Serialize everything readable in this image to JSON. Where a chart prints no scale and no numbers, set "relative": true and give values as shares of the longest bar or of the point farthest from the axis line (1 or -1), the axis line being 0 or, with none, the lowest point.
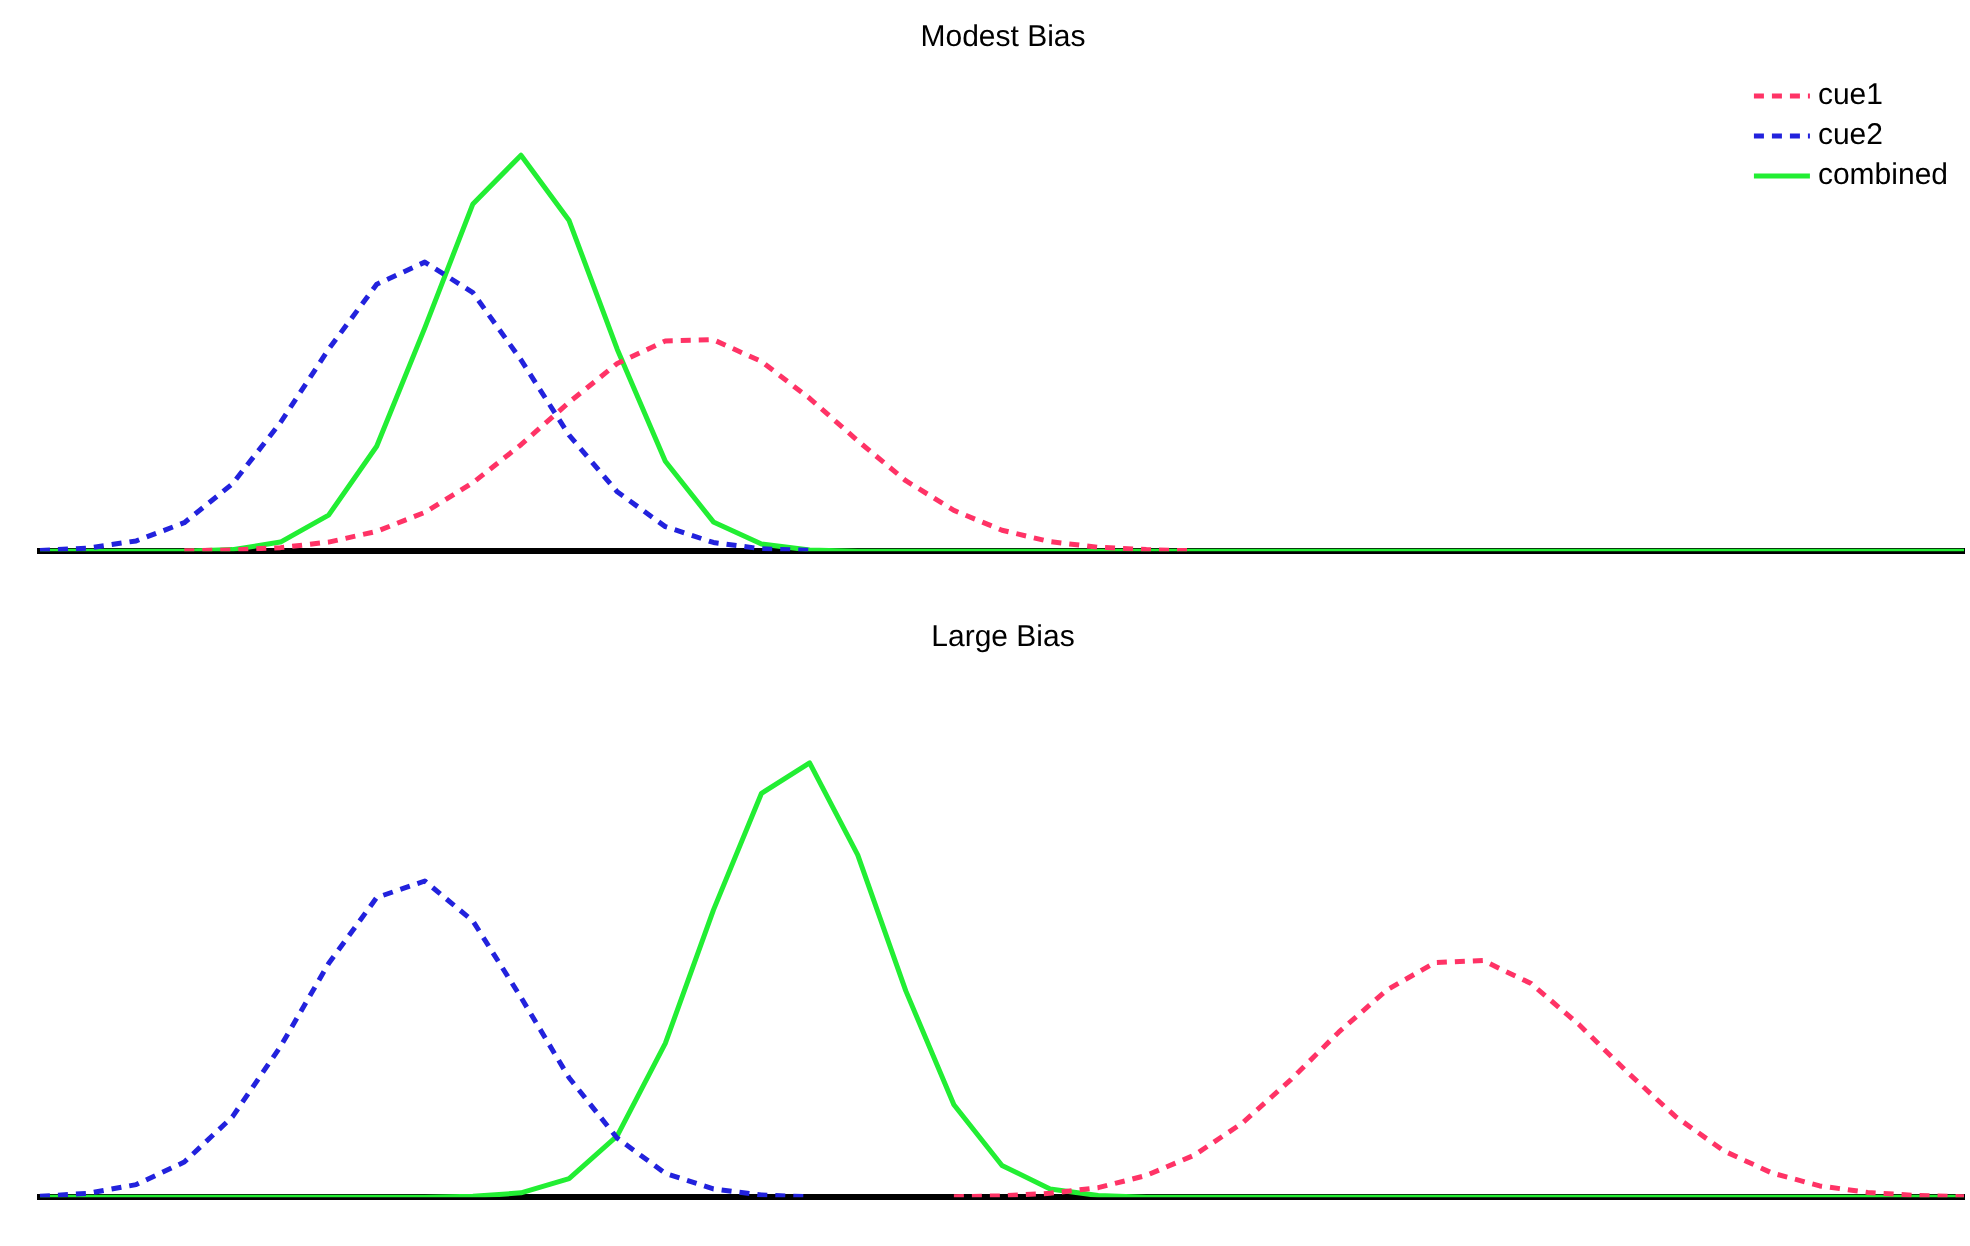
{
  "chart_data": [
    {
      "type": "line",
      "title": "Modest Bias",
      "relative": true,
      "legend": "top right",
      "marker": "none",
      "categories": [
        null,
        null,
        null,
        null,
        null,
        null,
        null,
        null,
        null,
        null,
        null,
        null,
        null,
        null,
        null,
        null,
        null,
        null,
        null,
        null,
        null,
        null,
        null,
        null,
        null,
        null,
        null,
        null,
        null,
        null,
        null,
        null,
        null,
        null,
        null,
        null,
        null,
        null,
        null,
        null,
        null
      ],
      "series": [
        {
          "name": "cue1",
          "color": "#ff3366",
          "line_style": "dashed",
          "values": [
            null,
            null,
            null,
            0.001,
            0.003,
            0.009,
            0.023,
            0.05,
            0.098,
            0.173,
            0.269,
            0.376,
            0.474,
            0.531,
            0.534,
            0.479,
            0.386,
            0.279,
            0.178,
            0.103,
            0.053,
            0.024,
            0.01,
            0.004,
            0.001,
            null,
            null,
            null,
            null,
            null,
            null,
            null,
            null,
            null,
            null,
            null,
            null,
            null,
            null,
            null,
            null
          ]
        },
        {
          "name": "cue2",
          "color": "#2222dd",
          "line_style": "dashed",
          "values": [
            0.002,
            0.008,
            0.026,
            0.072,
            0.17,
            0.325,
            0.51,
            0.674,
            0.73,
            0.653,
            0.483,
            0.293,
            0.15,
            0.062,
            0.022,
            0.006,
            0.002,
            null,
            null,
            null,
            null,
            null,
            null,
            null,
            null,
            null,
            null,
            null,
            null,
            null,
            null,
            null,
            null,
            null,
            null,
            null,
            null,
            null,
            null,
            null,
            null
          ]
        },
        {
          "name": "combined",
          "color": "#22ee33",
          "line_style": "solid",
          "values": [
            0,
            0,
            0,
            0,
            0.004,
            0.023,
            0.091,
            0.265,
            0.564,
            0.877,
            1,
            0.835,
            0.51,
            0.227,
            0.074,
            0.018,
            0.003,
            0,
            0,
            0,
            0,
            0,
            0,
            0,
            0,
            0,
            0,
            0,
            0,
            0,
            0,
            0,
            0,
            0,
            0,
            0,
            0,
            0,
            0,
            0,
            0
          ]
        }
      ]
    },
    {
      "type": "line",
      "title": "Large Bias",
      "relative": true,
      "legend": false,
      "marker": "none",
      "categories": [
        null,
        null,
        null,
        null,
        null,
        null,
        null,
        null,
        null,
        null,
        null,
        null,
        null,
        null,
        null,
        null,
        null,
        null,
        null,
        null,
        null,
        null,
        null,
        null,
        null,
        null,
        null,
        null,
        null,
        null,
        null,
        null,
        null,
        null,
        null,
        null,
        null,
        null,
        null,
        null,
        null
      ],
      "series": [
        {
          "color": "#ff3366",
          "line_style": "dashed",
          "values": [
            null,
            null,
            null,
            null,
            null,
            null,
            null,
            null,
            null,
            null,
            null,
            null,
            null,
            null,
            null,
            null,
            null,
            null,
            null,
            0.001,
            0.003,
            0.009,
            0.022,
            0.05,
            0.097,
            0.171,
            0.27,
            0.38,
            0.477,
            0.54,
            0.545,
            0.492,
            0.397,
            0.288,
            0.186,
            0.107,
            0.056,
            0.026,
            0.011,
            0.004,
            0.001
          ]
        },
        {
          "color": "#2222dd",
          "line_style": "dashed",
          "values": [
            0.002,
            0.009,
            0.029,
            0.081,
            0.185,
            0.347,
            0.538,
            0.69,
            0.728,
            0.636,
            0.46,
            0.275,
            0.136,
            0.055,
            0.019,
            0.005,
            0.001,
            null,
            null,
            null,
            null,
            null,
            null,
            null,
            null,
            null,
            null,
            null,
            null,
            null,
            null,
            null,
            null,
            null,
            null,
            null,
            null,
            null,
            null,
            null,
            null
          ]
        },
        {
          "color": "#22ee33",
          "line_style": "solid",
          "values": [
            0,
            0,
            0,
            0,
            0,
            0,
            0,
            0,
            0,
            0.002,
            0.01,
            0.043,
            0.141,
            0.354,
            0.661,
            0.93,
            1,
            0.788,
            0.475,
            0.213,
            0.073,
            0.019,
            0.004,
            0,
            0,
            0,
            0,
            0,
            0,
            0,
            0,
            0,
            0,
            0,
            0,
            0,
            0,
            0,
            0,
            0,
            0
          ]
        }
      ]
    }
  ]
}
